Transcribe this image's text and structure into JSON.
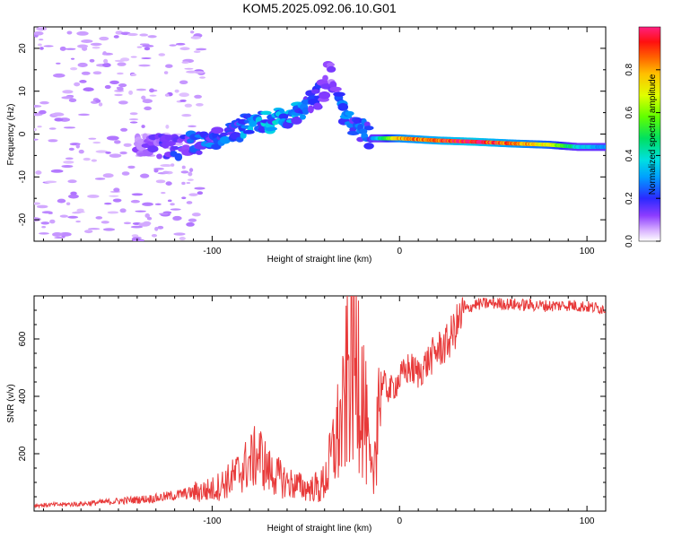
{
  "title": "KOM5.2025.092.06.10.G01",
  "chart_data": [
    {
      "type": "heatmap",
      "xlabel": "Height of straight line (km)",
      "ylabel": "Frequency (Hz)",
      "xlim": [
        -195,
        110
      ],
      "ylim": [
        -25,
        25
      ],
      "xticks": [
        -100,
        0,
        100
      ],
      "xtick_labels": [
        "-100",
        "0",
        "100"
      ],
      "yticks": [
        -20,
        -10,
        0,
        10,
        20
      ],
      "ytick_labels": [
        "-20",
        "-10",
        "0",
        "10",
        "20"
      ],
      "colorbar": {
        "label": "Normalized spectral amplitude",
        "range": [
          0,
          1
        ],
        "ticks": [
          0.0,
          0.2,
          0.4,
          0.6,
          0.8
        ],
        "tick_labels": [
          "0.0",
          "0.2",
          "0.4",
          "0.6",
          "0.8"
        ]
      },
      "ridge": [
        {
          "x": -140,
          "y": -2.5,
          "v": 0.1
        },
        {
          "x": -120,
          "y": -3.0,
          "v": 0.2
        },
        {
          "x": -105,
          "y": -2.0,
          "v": 0.25
        },
        {
          "x": -90,
          "y": 0.0,
          "v": 0.25
        },
        {
          "x": -80,
          "y": 2.5,
          "v": 0.3
        },
        {
          "x": -65,
          "y": 3.5,
          "v": 0.35
        },
        {
          "x": -55,
          "y": 5.5,
          "v": 0.3
        },
        {
          "x": -45,
          "y": 8.0,
          "v": 0.2
        },
        {
          "x": -40,
          "y": 11.0,
          "v": 0.15
        },
        {
          "x": -38,
          "y": 15.5,
          "v": 0.1
        },
        {
          "x": -30,
          "y": 4.0,
          "v": 0.25
        },
        {
          "x": -15,
          "y": -1.0,
          "v": 0.25
        },
        {
          "x": 0,
          "y": -1.0,
          "v": 0.8
        },
        {
          "x": 20,
          "y": -1.5,
          "v": 0.9
        },
        {
          "x": 40,
          "y": -1.8,
          "v": 1.0
        },
        {
          "x": 60,
          "y": -2.2,
          "v": 0.85
        },
        {
          "x": 80,
          "y": -2.5,
          "v": 0.7
        },
        {
          "x": 95,
          "y": -3.0,
          "v": 0.4
        },
        {
          "x": 108,
          "y": -3.0,
          "v": 0.3
        }
      ]
    },
    {
      "type": "line",
      "xlabel": "Height of straight line (km)",
      "ylabel": "SNR (v/v)",
      "xlim": [
        -195,
        110
      ],
      "ylim": [
        0,
        750
      ],
      "xticks": [
        -100,
        0,
        100
      ],
      "xtick_labels": [
        "-100",
        "0",
        "100"
      ],
      "yticks": [
        200,
        400,
        600
      ],
      "ytick_labels": [
        "200",
        "400",
        "600"
      ],
      "color": "#e83a3a",
      "series": [
        {
          "x": [
            -195,
            -170,
            -150,
            -130,
            -115,
            -100,
            -90,
            -80,
            -75,
            -70,
            -60,
            -50,
            -42,
            -38,
            -34,
            -30,
            -28,
            -26,
            -24,
            -22,
            -20,
            -18,
            -16,
            -14,
            -12,
            -10,
            -5,
            0,
            5,
            10,
            15,
            20,
            25,
            30,
            35,
            40,
            50,
            60,
            70,
            80,
            90,
            100,
            110
          ],
          "y": [
            20,
            25,
            35,
            45,
            60,
            75,
            110,
            170,
            200,
            140,
            100,
            80,
            80,
            140,
            250,
            320,
            450,
            550,
            480,
            550,
            420,
            300,
            150,
            90,
            390,
            450,
            420,
            460,
            500,
            480,
            520,
            560,
            580,
            640,
            700,
            720,
            725,
            720,
            718,
            715,
            718,
            712,
            705
          ]
        }
      ]
    }
  ]
}
